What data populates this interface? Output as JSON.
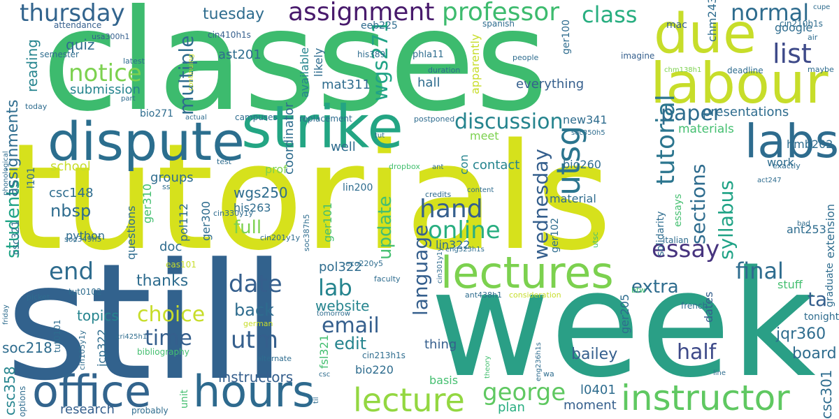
{
  "words": [
    {
      "text": "tutorials",
      "color": "#d6e11c"
    },
    {
      "text": "classes",
      "color": "#3dbb6e"
    },
    {
      "text": "still",
      "color": "#32628d"
    },
    {
      "text": "week",
      "color": "#2a9f86"
    },
    {
      "text": "strike",
      "color": "#23a583"
    },
    {
      "text": "labour",
      "color": "#c7dd2a"
    },
    {
      "text": "due",
      "color": "#c7dd2a"
    },
    {
      "text": "dispute",
      "color": "#2b6e8e"
    },
    {
      "text": "lectures",
      "color": "#7cd14f"
    },
    {
      "text": "office",
      "color": "#32648d"
    },
    {
      "text": "hours",
      "color": "#2e6a8e"
    },
    {
      "text": "instructor",
      "color": "#5fc861"
    },
    {
      "text": "lecture",
      "color": "#93d741"
    },
    {
      "text": "labs",
      "color": "#2e6c8e"
    },
    {
      "text": "utsg",
      "color": "#2b758e"
    },
    {
      "text": "professor",
      "color": "#3dbb6e"
    },
    {
      "text": "assignment",
      "color": "#481a6c"
    },
    {
      "text": "thursday",
      "color": "#32648d"
    },
    {
      "text": "class",
      "color": "#28ae80"
    },
    {
      "text": "normal",
      "color": "#2e6c8e"
    },
    {
      "text": "list",
      "color": "#3e4a89"
    },
    {
      "text": "notice",
      "color": "#7cd14f"
    },
    {
      "text": "multiple",
      "color": "#2e6c8e"
    },
    {
      "text": "wgs271",
      "color": "#20a386"
    },
    {
      "text": "tutorial",
      "color": "#2b758e"
    },
    {
      "text": "discussion",
      "color": "#25848e"
    },
    {
      "text": "paper",
      "color": "#2e6c8e"
    },
    {
      "text": "essay",
      "color": "#46337e"
    },
    {
      "text": "final",
      "color": "#2e6c8e"
    },
    {
      "text": "date",
      "color": "#355f8d"
    },
    {
      "text": "end",
      "color": "#2e6c8e"
    },
    {
      "text": "hand",
      "color": "#355f8d"
    },
    {
      "text": "online",
      "color": "#28ae80"
    },
    {
      "text": "lab",
      "color": "#25848e"
    },
    {
      "text": "time",
      "color": "#355f8d"
    },
    {
      "text": "choice",
      "color": "#c7dd2a"
    },
    {
      "text": "email",
      "color": "#355f8d"
    },
    {
      "text": "utm",
      "color": "#355f8d"
    },
    {
      "text": "george",
      "color": "#5fc861"
    },
    {
      "text": "update",
      "color": "#44bf70"
    },
    {
      "text": "language",
      "color": "#355f8d"
    },
    {
      "text": "syllabus",
      "color": "#20a386"
    },
    {
      "text": "sections",
      "color": "#2e6c8e"
    },
    {
      "text": "wednesday",
      "color": "#355f8d"
    },
    {
      "text": "half",
      "color": "#3e4a89"
    },
    {
      "text": "ta",
      "color": "#355f8d"
    },
    {
      "text": "extra",
      "color": "#2e6c8e"
    },
    {
      "text": "jqr360",
      "color": "#2e6c8e"
    },
    {
      "text": "board",
      "color": "#2e6c8e"
    },
    {
      "text": "bailey",
      "color": "#355f8d"
    },
    {
      "text": "students",
      "color": "#20a386"
    },
    {
      "text": "assignments",
      "color": "#2e6c8e"
    },
    {
      "text": "submission",
      "color": "#25848e"
    },
    {
      "text": "quiz",
      "color": "#2e6c8e"
    },
    {
      "text": "reading",
      "color": "#25848e"
    },
    {
      "text": "nbsp",
      "color": "#2e6c8e"
    },
    {
      "text": "full",
      "color": "#7cd14f"
    },
    {
      "text": "back",
      "color": "#2e6c8e"
    },
    {
      "text": "thanks",
      "color": "#2e6c8e"
    },
    {
      "text": "edit",
      "color": "#25848e"
    },
    {
      "text": "website",
      "color": "#25848e"
    },
    {
      "text": "topics",
      "color": "#25848e"
    },
    {
      "text": "soc218",
      "color": "#2e6c8e"
    },
    {
      "text": "csc358",
      "color": "#25848e"
    },
    {
      "text": "instructors",
      "color": "#355f8d"
    },
    {
      "text": "research",
      "color": "#355f8d"
    },
    {
      "text": "moment",
      "color": "#355f8d"
    },
    {
      "text": "plan",
      "color": "#28ae80"
    },
    {
      "text": "csc301",
      "color": "#2e6c8e"
    },
    {
      "text": "everything",
      "color": "#355f8d"
    },
    {
      "text": "presentations",
      "color": "#2e6c8e"
    },
    {
      "text": "materials",
      "color": "#44bf70"
    },
    {
      "text": "contact",
      "color": "#25848e"
    },
    {
      "text": "hall",
      "color": "#2e6c8e"
    },
    {
      "text": "mat311",
      "color": "#2e6c8e"
    },
    {
      "text": "ast201",
      "color": "#2e6c8e"
    },
    {
      "text": "tuesday",
      "color": "#2e6c8e"
    },
    {
      "text": "groups",
      "color": "#2e6c8e"
    },
    {
      "text": "school",
      "color": "#c7dd2a"
    },
    {
      "text": "csc148",
      "color": "#2e6c8e"
    },
    {
      "text": "wgs250",
      "color": "#2e6c8e"
    },
    {
      "text": "his263",
      "color": "#2e6c8e"
    },
    {
      "text": "python",
      "color": "#2e6c8e"
    },
    {
      "text": "doc",
      "color": "#2e6c8e"
    },
    {
      "text": "pol322",
      "color": "#2e6c8e"
    },
    {
      "text": "lin322",
      "color": "#2e6c8e"
    },
    {
      "text": "material",
      "color": "#2e6c8e"
    },
    {
      "text": "bio260",
      "color": "#2e6c8e"
    },
    {
      "text": "new341",
      "color": "#2e6c8e"
    },
    {
      "text": "hmb202",
      "color": "#2e6c8e"
    },
    {
      "text": "work",
      "color": "#2e6c8e"
    },
    {
      "text": "ant253",
      "color": "#2e6c8e"
    },
    {
      "text": "google",
      "color": "#2e6c8e"
    },
    {
      "text": "well",
      "color": "#2e6c8e"
    },
    {
      "text": "lin200",
      "color": "#2e6c8e"
    },
    {
      "text": "stuff",
      "color": "#44bf70"
    },
    {
      "text": "thing",
      "color": "#355f8d"
    },
    {
      "text": "dates",
      "color": "#355f8d"
    },
    {
      "text": "tonight",
      "color": "#2e6c8e"
    },
    {
      "text": "basis",
      "color": "#44bf70"
    },
    {
      "text": "bio220",
      "color": "#2e6c8e"
    },
    {
      "text": "l0401",
      "color": "#2e6c8e"
    },
    {
      "text": "ger205",
      "color": "#2e6c8e"
    },
    {
      "text": "coordinator",
      "color": "#2e6c8e"
    },
    {
      "text": "available",
      "color": "#25848e"
    },
    {
      "text": "likely",
      "color": "#2e6c8e"
    },
    {
      "text": "meet",
      "color": "#7cd14f"
    },
    {
      "text": "con",
      "color": "#25848e"
    },
    {
      "text": "prof",
      "color": "#7cd14f"
    },
    {
      "text": "cin410h1s",
      "color": "#355f8d"
    },
    {
      "text": "eeb225",
      "color": "#2e6c8e"
    },
    {
      "text": "phla11",
      "color": "#2e6c8e"
    },
    {
      "text": "ger100",
      "color": "#2e6c8e"
    },
    {
      "text": "chm243",
      "color": "#2e6c8e"
    },
    {
      "text": "cin210h1s",
      "color": "#2e6c8e"
    },
    {
      "text": "mac",
      "color": "#355f8d"
    },
    {
      "text": "spanish",
      "color": "#2e6c8e"
    },
    {
      "text": "his389",
      "color": "#2e6c8e"
    },
    {
      "text": "people",
      "color": "#2e6c8e"
    },
    {
      "text": "imagine",
      "color": "#355f8d"
    },
    {
      "text": "deadline",
      "color": "#2e6c8e"
    },
    {
      "text": "maybe",
      "color": "#2e6c8e"
    },
    {
      "text": "chm138h1",
      "color": "#7cd14f"
    },
    {
      "text": "duration",
      "color": "#2e6c8e"
    },
    {
      "text": "attendance",
      "color": "#355f8d"
    },
    {
      "text": "usa300h1",
      "color": "#355f8d"
    },
    {
      "text": "latest",
      "color": "#2e6c8e"
    },
    {
      "text": "semester",
      "color": "#2e6c8e"
    },
    {
      "text": "today",
      "color": "#2e6c8e"
    },
    {
      "text": "part",
      "color": "#2e6c8e"
    },
    {
      "text": "bio271",
      "color": "#2e6c8e"
    },
    {
      "text": "actual",
      "color": "#2e6c8e"
    },
    {
      "text": "campuses",
      "color": "#2e6c8e"
    },
    {
      "text": "replacement",
      "color": "#2e6c8e"
    },
    {
      "text": "postponed",
      "color": "#2e6c8e"
    },
    {
      "text": "soc350h5",
      "color": "#2e6c8e"
    },
    {
      "text": "test",
      "color": "#2e6c8e"
    },
    {
      "text": "ss",
      "color": "#2e6c8e"
    },
    {
      "text": "ger310",
      "color": "#44bf70"
    },
    {
      "text": "pol112",
      "color": "#2e6c8e"
    },
    {
      "text": "ger300",
      "color": "#2e6c8e"
    },
    {
      "text": "ger101",
      "color": "#44bf70"
    },
    {
      "text": "cin330y1y",
      "color": "#2e6c8e"
    },
    {
      "text": "cin201y1y",
      "color": "#2e6c8e"
    },
    {
      "text": "soc387h5",
      "color": "#2e6c8e"
    },
    {
      "text": "dropbox",
      "color": "#44bf70"
    },
    {
      "text": "credits",
      "color": "#2e6c8e"
    },
    {
      "text": "content",
      "color": "#2e6c8e"
    },
    {
      "text": "ant",
      "color": "#2e6c8e"
    },
    {
      "text": "act247",
      "color": "#2e6c8e"
    },
    {
      "text": "exactly",
      "color": "#2e6c8e"
    },
    {
      "text": "extension",
      "color": "#2e6c8e"
    },
    {
      "text": "graduate",
      "color": "#2e6c8e"
    },
    {
      "text": "solidarity",
      "color": "#2e6c8e"
    },
    {
      "text": "essays",
      "color": "#44bf70"
    },
    {
      "text": "italian",
      "color": "#2e6c8e"
    },
    {
      "text": "utsc",
      "color": "#44bf70"
    },
    {
      "text": "bad",
      "color": "#2e6c8e"
    },
    {
      "text": "ger102",
      "color": "#2e6c8e"
    },
    {
      "text": "eng323h1s",
      "color": "#2e6c8e"
    },
    {
      "text": "ant438h1",
      "color": "#2e6c8e"
    },
    {
      "text": "consideration",
      "color": "#c7dd2a"
    },
    {
      "text": "btw",
      "color": "#44bf70"
    },
    {
      "text": "french",
      "color": "#2e6c8e"
    },
    {
      "text": "eng236h1s",
      "color": "#2e6c8e"
    },
    {
      "text": "theory",
      "color": "#44bf70"
    },
    {
      "text": "wa",
      "color": "#2e6c8e"
    },
    {
      "text": "line",
      "color": "#2e6c8e"
    },
    {
      "text": "cin301y1y",
      "color": "#2e6c8e"
    },
    {
      "text": "cin213h1s",
      "color": "#2e6c8e"
    },
    {
      "text": "fsl321",
      "color": "#44bf70"
    },
    {
      "text": "eco220y5",
      "color": "#2e6c8e"
    },
    {
      "text": "faculty",
      "color": "#2e6c8e"
    },
    {
      "text": "tomorrow",
      "color": "#2e6c8e"
    },
    {
      "text": "german",
      "color": "#c7dd2a"
    },
    {
      "text": "eas101",
      "color": "#c7dd2a"
    },
    {
      "text": "bibliography",
      "color": "#44bf70"
    },
    {
      "text": "alternate",
      "color": "#2e6c8e"
    },
    {
      "text": "csc",
      "color": "#2e6c8e"
    },
    {
      "text": "til",
      "color": "#2e6c8e"
    },
    {
      "text": "probably",
      "color": "#2e6c8e"
    },
    {
      "text": "unit",
      "color": "#44bf70"
    },
    {
      "text": "options",
      "color": "#2e6c8e"
    },
    {
      "text": "friday",
      "color": "#2e6c8e"
    },
    {
      "text": "picket",
      "color": "#2e6c8e"
    },
    {
      "text": "tut0101",
      "color": "#2e6c8e"
    },
    {
      "text": "tut0102",
      "color": "#2e6c8e"
    },
    {
      "text": "cri425h1",
      "color": "#2e6c8e"
    },
    {
      "text": "cin105y1y",
      "color": "#2e6c8e"
    },
    {
      "text": "jcp322",
      "color": "#2e6c8e"
    },
    {
      "text": "soc349h5",
      "color": "#2e6c8e"
    },
    {
      "text": "csc321",
      "color": "#2e6c8e"
    },
    {
      "text": "phonological",
      "color": "#2e6c8e"
    },
    {
      "text": "l101",
      "color": "#2e6c8e"
    },
    {
      "text": "questions",
      "color": "#2e6c8e"
    },
    {
      "text": "apparently",
      "color": "#c7dd2a"
    },
    {
      "text": "continuing",
      "color": "#c7dd2a"
    },
    {
      "text": "tut",
      "color": "#2e6c8e"
    },
    {
      "text": "cupe",
      "color": "#2e6c8e"
    },
    {
      "text": "air",
      "color": "#2e6c8e"
    }
  ]
}
